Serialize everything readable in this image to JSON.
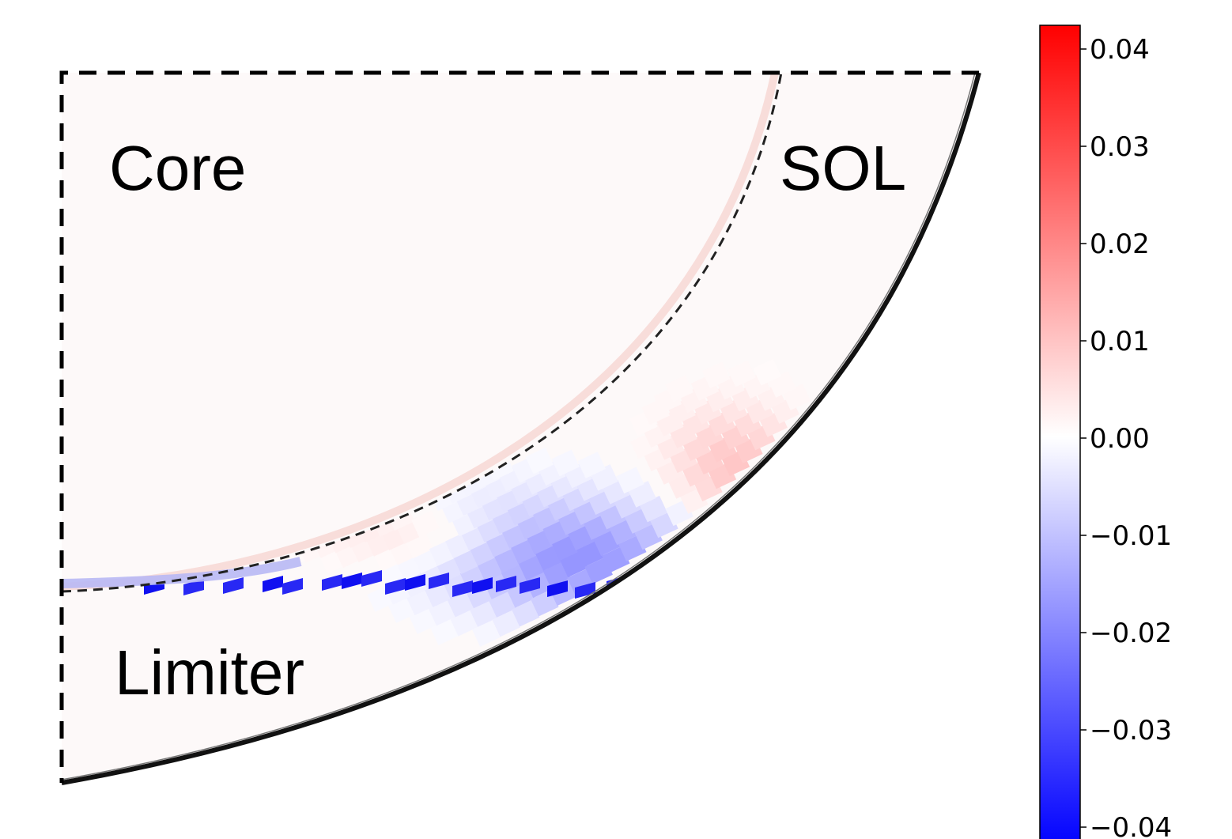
{
  "chart_data": {
    "type": "heatmap",
    "title": "",
    "regions": {
      "core": "Core",
      "sol": "SOL",
      "limiter": "Limiter"
    },
    "colorbar": {
      "colormap": "bwr",
      "range": [
        -0.04,
        0.04
      ],
      "ticks": [
        0.04,
        0.03,
        0.02,
        0.01,
        0.0,
        -0.01,
        -0.02,
        -0.03,
        -0.04
      ],
      "tick_labels": [
        "0.04",
        "0.03",
        "0.02",
        "0.01",
        "0.00",
        "−0.01",
        "−0.02",
        "−0.03",
        "−0.04"
      ],
      "colors": {
        "min": "#0000ff",
        "mid": "#ffffff",
        "max": "#ff0000"
      }
    },
    "field_features": [
      {
        "location": "separatrix band, lower core edge",
        "value": 0.004
      },
      {
        "location": "SOL near limiter (mid)",
        "value": 0.007
      },
      {
        "location": "SOL near limiter contact",
        "value": -0.012
      },
      {
        "location": "limiter tip cells",
        "value": -0.03
      },
      {
        "location": "bulk core and SOL",
        "value": 0.0
      }
    ],
    "boundaries": {
      "separatrix": "dashed",
      "wall": "solid",
      "domain_box": "dashed"
    }
  }
}
